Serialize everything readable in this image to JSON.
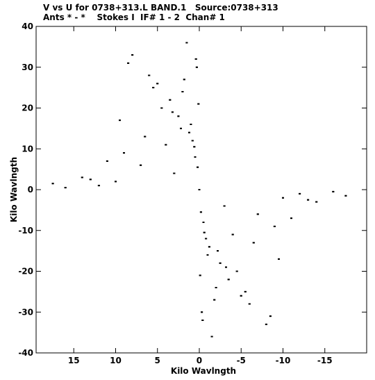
{
  "header": {
    "title": "V vs U for 0738+313.L BAND.1   Source:0738+313",
    "subtitle": "Ants * - *    Stokes I  IF# 1 - 2  Chan# 1"
  },
  "chart_data": {
    "type": "scatter",
    "xlabel": "Kilo Wavlngth",
    "ylabel": "Kilo Wavlngth",
    "xlim": [
      19.5,
      -20
    ],
    "ylim": [
      -40,
      40
    ],
    "x_ticks": [
      15,
      10,
      5,
      0,
      -5,
      -10,
      -15
    ],
    "x_tick_labels": [
      "15",
      "10",
      "5",
      "0",
      "-5",
      "-10",
      "-15"
    ],
    "y_ticks": [
      40,
      30,
      20,
      10,
      0,
      -10,
      -20,
      -30,
      -40
    ],
    "y_tick_labels": [
      "40",
      "30",
      "20",
      "10",
      "0",
      "-10",
      "-20",
      "-30",
      "-40"
    ],
    "marker_color": "#000000",
    "series": [
      {
        "x": [
          0.0,
          0.5,
          -0.5,
          1.0,
          -1.0,
          2.0,
          -2.0,
          0.3,
          -0.3,
          1.5,
          -1.5,
          3.0,
          -3.0,
          0.8,
          -0.8,
          4.5,
          -4.5,
          6.0,
          -6.0,
          8.0,
          -8.0,
          10.0,
          -10.0,
          12.0,
          -12.0,
          14.0,
          -14.0,
          16.0,
          -16.0,
          17.5,
          -17.5,
          0.2,
          -0.2,
          0.6,
          -0.6,
          1.2,
          -1.2,
          2.5,
          -2.5,
          3.5,
          -3.5,
          5.0,
          -5.0,
          7.0,
          -7.0,
          9.0,
          -9.0,
          11.0,
          -11.0,
          13.0,
          -13.0,
          0.1,
          -0.1,
          0.4,
          -0.4,
          2.2,
          -2.2,
          4.0,
          -4.0,
          6.5,
          -6.5,
          9.5,
          -9.5,
          1.8,
          -1.8,
          3.2,
          -3.2,
          5.5,
          -5.5,
          8.5,
          -8.5
        ],
        "y": [
          0.0,
          8.0,
          -8.0,
          16.0,
          -16.0,
          24.0,
          -24.0,
          30.0,
          -30.0,
          36.0,
          -36.0,
          4.0,
          -4.0,
          12.0,
          -12.0,
          20.0,
          -20.0,
          28.0,
          -28.0,
          33.0,
          -33.0,
          2.0,
          -2.0,
          1.0,
          -1.0,
          3.0,
          -3.0,
          0.5,
          -0.5,
          1.5,
          -1.5,
          5.5,
          -5.5,
          10.5,
          -10.5,
          14.0,
          -14.0,
          18.0,
          -18.0,
          22.0,
          -22.0,
          26.0,
          -26.0,
          6.0,
          -6.0,
          9.0,
          -9.0,
          7.0,
          -7.0,
          2.5,
          -2.5,
          21.0,
          -21.0,
          32.0,
          -32.0,
          15.0,
          -15.0,
          11.0,
          -11.0,
          13.0,
          -13.0,
          17.0,
          -17.0,
          27.0,
          -27.0,
          19.0,
          -19.0,
          25.0,
          -25.0,
          31.0,
          -31.0
        ]
      }
    ]
  }
}
